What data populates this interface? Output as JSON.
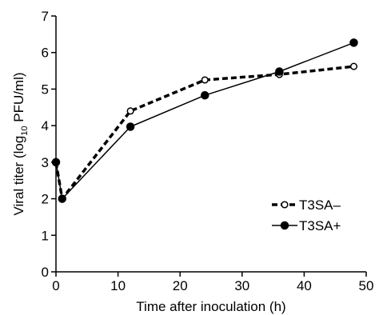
{
  "chart_data": {
    "type": "line",
    "title": "",
    "xlabel": "Time after inoculation (h)",
    "ylabel": {
      "pre": "Viral titer (log",
      "sub": "10",
      "post": " PFU/ml)"
    },
    "xlim": [
      0,
      50
    ],
    "ylim": [
      0,
      7
    ],
    "xticks": [
      0,
      10,
      20,
      30,
      40,
      50
    ],
    "yticks": [
      0,
      1,
      2,
      3,
      4,
      5,
      6,
      7
    ],
    "grid": false,
    "legend_position": "right",
    "series": [
      {
        "name": "T3SA–",
        "marker": "open-circle",
        "line_style": "dashed",
        "color": "#000000",
        "x": [
          0,
          1,
          12,
          24,
          36,
          48
        ],
        "y": [
          3.0,
          2.0,
          4.4,
          5.25,
          5.4,
          5.62
        ]
      },
      {
        "name": "T3SA+",
        "marker": "filled-circle",
        "line_style": "solid",
        "color": "#000000",
        "x": [
          0,
          1,
          12,
          24,
          36,
          48
        ],
        "y": [
          3.0,
          2.0,
          3.97,
          4.83,
          5.48,
          6.27
        ]
      }
    ]
  }
}
